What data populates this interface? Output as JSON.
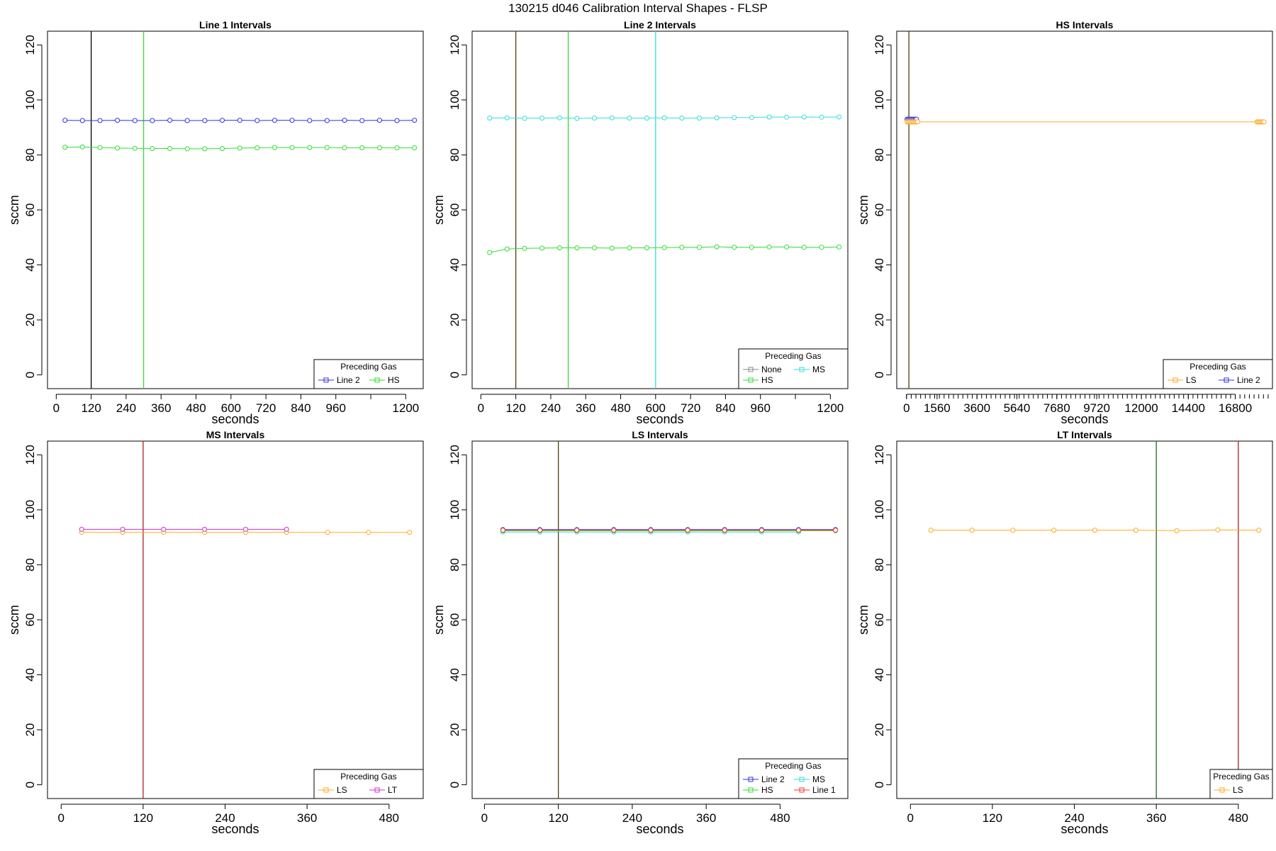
{
  "figure_title": "130215   d046   Calibration Interval Shapes - FLSP",
  "colors": {
    "Line 1": "#ff3333",
    "Line 2": "#3333dd",
    "HS": "#33dd33",
    "MS": "#33dddd",
    "LS": "#ffaa22",
    "LT": "#cc33cc",
    "None": "#888888",
    "black": "#000000",
    "vline_green": "#33dd33",
    "vline_cyan": "#33dddd",
    "vline_olive": "#4a3e10",
    "vline_maroon": "#aa2222",
    "vline_darkgreen": "#226622"
  },
  "chart_data": [
    {
      "type": "line",
      "title": "Line 1 Intervals",
      "xlabel": "seconds",
      "ylabel": "sccm",
      "xlim": [
        -30,
        1260
      ],
      "ylim": [
        -5,
        125
      ],
      "xticks": [
        0,
        120,
        240,
        360,
        480,
        600,
        720,
        840,
        960,
        1080,
        1200
      ],
      "xtick_labels": [
        "0",
        "120",
        "240",
        "360",
        "480",
        "600",
        "720",
        "840",
        "960",
        "",
        "1200"
      ],
      "yticks": [
        0,
        20,
        40,
        60,
        80,
        100,
        120
      ],
      "vlines": [
        {
          "x": 120,
          "color": "black"
        },
        {
          "x": 300,
          "color": "vline_green"
        }
      ],
      "legend": {
        "title": "Preceding Gas",
        "position": "bottom-right",
        "ncol": 2,
        "entries": [
          "Line 2",
          "HS"
        ]
      },
      "series": [
        {
          "name": "Line 2",
          "x": [
            30,
            90,
            150,
            210,
            270,
            330,
            390,
            450,
            510,
            570,
            630,
            690,
            750,
            810,
            870,
            930,
            990,
            1050,
            1110,
            1170,
            1230
          ],
          "y": [
            92.6,
            92.5,
            92.5,
            92.6,
            92.5,
            92.5,
            92.6,
            92.5,
            92.5,
            92.6,
            92.6,
            92.5,
            92.6,
            92.6,
            92.5,
            92.5,
            92.6,
            92.5,
            92.6,
            92.5,
            92.6
          ]
        },
        {
          "name": "HS",
          "x": [
            30,
            90,
            150,
            210,
            270,
            330,
            390,
            450,
            510,
            570,
            630,
            690,
            750,
            810,
            870,
            930,
            990,
            1050,
            1110,
            1170,
            1230
          ],
          "y": [
            82.8,
            82.9,
            82.7,
            82.5,
            82.4,
            82.3,
            82.3,
            82.2,
            82.2,
            82.3,
            82.5,
            82.6,
            82.7,
            82.7,
            82.7,
            82.7,
            82.6,
            82.6,
            82.6,
            82.6,
            82.6
          ]
        }
      ]
    },
    {
      "type": "line",
      "title": "Line 2 Intervals",
      "xlabel": "seconds",
      "ylabel": "sccm",
      "xlim": [
        -30,
        1260
      ],
      "ylim": [
        -5,
        125
      ],
      "xticks": [
        0,
        120,
        240,
        360,
        480,
        600,
        720,
        840,
        960,
        1080,
        1200
      ],
      "xtick_labels": [
        "0",
        "120",
        "240",
        "360",
        "480",
        "600",
        "720",
        "840",
        "960",
        "",
        "1200"
      ],
      "yticks": [
        0,
        20,
        40,
        60,
        80,
        100,
        120
      ],
      "vlines": [
        {
          "x": 120,
          "color": "vline_olive"
        },
        {
          "x": 300,
          "color": "vline_green"
        },
        {
          "x": 600,
          "color": "vline_cyan"
        }
      ],
      "legend": {
        "title": "Preceding Gas",
        "position": "bottom-right",
        "ncol": 2,
        "entries": [
          "None",
          "MS",
          "HS"
        ]
      },
      "series": [
        {
          "name": "MS",
          "x": [
            30,
            90,
            150,
            210,
            270,
            330,
            390,
            450,
            510,
            570,
            630,
            690,
            750,
            810,
            870,
            930,
            990,
            1050,
            1110,
            1170,
            1230
          ],
          "y": [
            93.4,
            93.5,
            93.3,
            93.4,
            93.5,
            93.3,
            93.4,
            93.5,
            93.4,
            93.4,
            93.5,
            93.4,
            93.4,
            93.5,
            93.6,
            93.6,
            93.8,
            93.7,
            93.8,
            93.7,
            93.8
          ]
        },
        {
          "name": "HS",
          "x": [
            30,
            90,
            150,
            210,
            270,
            330,
            390,
            450,
            510,
            570,
            630,
            690,
            750,
            810,
            870,
            930,
            990,
            1050,
            1110,
            1170,
            1230
          ],
          "y": [
            44.5,
            45.8,
            46.0,
            46.1,
            46.2,
            46.2,
            46.2,
            46.1,
            46.2,
            46.2,
            46.3,
            46.4,
            46.4,
            46.6,
            46.4,
            46.4,
            46.5,
            46.5,
            46.4,
            46.4,
            46.5
          ]
        }
      ]
    },
    {
      "type": "line",
      "title": "HS Intervals",
      "xlabel": "seconds",
      "ylabel": "sccm",
      "xlim": [
        -500,
        18700
      ],
      "ylim": [
        -5,
        125
      ],
      "xticks": [
        0,
        1560,
        3600,
        5640,
        7680,
        9720,
        12000,
        14400,
        16800
      ],
      "xtick_labels": [
        "0",
        "1560",
        "3600",
        "5640",
        "7680",
        "9720",
        "12000",
        "14400",
        "16800"
      ],
      "minor_tick_step": 240,
      "yticks": [
        0,
        20,
        40,
        60,
        80,
        100,
        120
      ],
      "vlines": [
        {
          "x": 120,
          "color": "vline_olive"
        }
      ],
      "legend": {
        "title": "Preceding Gas",
        "position": "bottom-right",
        "ncol": 2,
        "entries": [
          "LS",
          "Line 2"
        ]
      },
      "series": [
        {
          "name": "Line 2",
          "x": [
            30,
            90,
            150,
            210,
            270,
            330,
            390,
            450,
            510
          ],
          "y": [
            93.0,
            93.0,
            93.0,
            93.0,
            93.0,
            93.0,
            93.0,
            93.0,
            93.0
          ]
        },
        {
          "name": "LS",
          "x": [
            30,
            90,
            150,
            210,
            270,
            330,
            390,
            450,
            510,
            570,
            17910,
            17970,
            18030,
            18090,
            18150,
            18210,
            18270
          ],
          "y": [
            92.0,
            92.0,
            92.0,
            92.0,
            92.0,
            92.0,
            92.0,
            92.0,
            92.0,
            92.0,
            92.0,
            92.0,
            92.0,
            92.0,
            92.0,
            92.0,
            92.0
          ]
        }
      ]
    },
    {
      "type": "line",
      "title": "MS Intervals",
      "xlabel": "seconds",
      "ylabel": "sccm",
      "xlim": [
        -20,
        530
      ],
      "ylim": [
        -5,
        125
      ],
      "xticks": [
        0,
        120,
        240,
        360,
        480
      ],
      "xtick_labels": [
        "0",
        "120",
        "240",
        "360",
        "480"
      ],
      "yticks": [
        0,
        20,
        40,
        60,
        80,
        100,
        120
      ],
      "vlines": [
        {
          "x": 120,
          "color": "vline_maroon"
        }
      ],
      "legend": {
        "title": "Preceding Gas",
        "position": "bottom-right",
        "ncol": 2,
        "entries": [
          "LS",
          "LT"
        ]
      },
      "series": [
        {
          "name": "LS",
          "x": [
            30,
            90,
            150,
            210,
            270,
            330,
            390,
            450,
            510
          ],
          "y": [
            91.8,
            91.8,
            91.8,
            91.8,
            91.8,
            91.8,
            91.8,
            91.8,
            91.8
          ]
        },
        {
          "name": "LT",
          "x": [
            30,
            90,
            150,
            210,
            270,
            330
          ],
          "y": [
            92.9,
            92.9,
            92.9,
            92.9,
            92.9,
            92.9
          ]
        }
      ]
    },
    {
      "type": "line",
      "title": "LS Intervals",
      "xlabel": "seconds",
      "ylabel": "sccm",
      "xlim": [
        -20,
        590
      ],
      "ylim": [
        -5,
        125
      ],
      "xticks": [
        0,
        120,
        240,
        360,
        480
      ],
      "xtick_labels": [
        "0",
        "120",
        "240",
        "360",
        "480"
      ],
      "yticks": [
        0,
        20,
        40,
        60,
        80,
        100,
        120
      ],
      "vlines": [
        {
          "x": 120,
          "color": "vline_olive"
        }
      ],
      "legend": {
        "title": "Preceding Gas",
        "position": "bottom-right",
        "ncol": 2,
        "entries": [
          "Line 2",
          "MS",
          "HS",
          "Line 1"
        ]
      },
      "series": [
        {
          "name": "Line 2",
          "x": [
            30,
            90,
            150,
            210,
            270,
            330,
            390,
            450,
            510,
            570
          ],
          "y": [
            92.8,
            92.8,
            92.8,
            92.8,
            92.8,
            92.8,
            92.8,
            92.8,
            92.8,
            92.8
          ]
        },
        {
          "name": "MS",
          "x": [
            30,
            90,
            150,
            210,
            270,
            330,
            390,
            450,
            510
          ],
          "y": [
            91.9,
            91.9,
            91.9,
            91.9,
            91.9,
            91.9,
            91.9,
            91.9,
            91.9
          ]
        },
        {
          "name": "HS",
          "x": [
            30,
            90,
            150,
            210,
            270,
            330,
            390,
            450,
            510,
            570
          ],
          "y": [
            92.4,
            92.4,
            92.4,
            92.4,
            92.4,
            92.4,
            92.4,
            92.4,
            92.4,
            92.4
          ]
        },
        {
          "name": "Line 1",
          "x": [
            30,
            90,
            150,
            210,
            270,
            330,
            390,
            450,
            510,
            570
          ],
          "y": [
            92.6,
            92.6,
            92.6,
            92.6,
            92.6,
            92.6,
            92.6,
            92.6,
            92.6,
            92.6
          ]
        }
      ]
    },
    {
      "type": "line",
      "title": "LT Intervals",
      "xlabel": "seconds",
      "ylabel": "sccm",
      "xlim": [
        -20,
        530
      ],
      "ylim": [
        -5,
        125
      ],
      "xticks": [
        0,
        120,
        240,
        360,
        480
      ],
      "xtick_labels": [
        "0",
        "120",
        "240",
        "360",
        "480"
      ],
      "yticks": [
        0,
        20,
        40,
        60,
        80,
        100,
        120
      ],
      "vlines": [
        {
          "x": 360,
          "color": "vline_darkgreen"
        },
        {
          "x": 480,
          "color": "vline_maroon"
        }
      ],
      "legend": {
        "title": "Preceding Gas",
        "position": "bottom-right",
        "ncol": 1,
        "entries": [
          "LS"
        ]
      },
      "series": [
        {
          "name": "LS",
          "x": [
            30,
            90,
            150,
            210,
            270,
            330,
            390,
            450,
            510
          ],
          "y": [
            92.6,
            92.6,
            92.6,
            92.6,
            92.6,
            92.6,
            92.4,
            92.7,
            92.6
          ]
        }
      ]
    }
  ]
}
